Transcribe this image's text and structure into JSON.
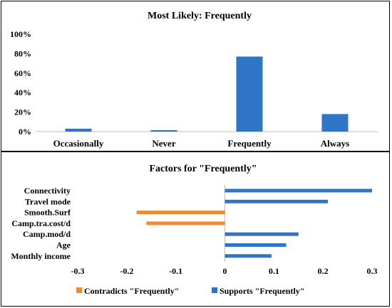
{
  "chart_data": [
    {
      "type": "bar",
      "title": "Most Likely: Frequently",
      "categories": [
        "Occasionally",
        "Never",
        "Frequently",
        "Always"
      ],
      "values": [
        3,
        1.5,
        77,
        18
      ],
      "ylim": [
        0,
        100
      ],
      "yticks": [
        "0%",
        "20%",
        "40%",
        "60%",
        "80%",
        "100%"
      ],
      "ytick_values": [
        0,
        20,
        40,
        60,
        80,
        100
      ],
      "color": "#2e75c6",
      "grid": false
    },
    {
      "type": "bar",
      "orientation": "horizontal",
      "title": "Factors for \"Frequently\"",
      "categories": [
        "Connectivity",
        "Travel mode",
        "Smooth.Surf",
        "Camp.tra.cost/d",
        "Camp.mod/d",
        "Age",
        "Monthly income"
      ],
      "values": [
        0.3,
        0.21,
        -0.18,
        -0.16,
        0.15,
        0.125,
        0.095
      ],
      "xlim": [
        -0.3,
        0.3
      ],
      "xticks": [
        "-0.3",
        "-0.2",
        "-0.1",
        "0",
        "0.1",
        "0.2",
        "0.3"
      ],
      "xtick_values": [
        -0.3,
        -0.2,
        -0.1,
        0,
        0.1,
        0.2,
        0.3
      ],
      "series": [
        {
          "name": "Contradicts \"Frequently\"",
          "color": "#f28a30"
        },
        {
          "name": "Supports \"Frequently\"",
          "color": "#2e75c6"
        }
      ],
      "legend_position": "bottom",
      "grid": false
    }
  ]
}
